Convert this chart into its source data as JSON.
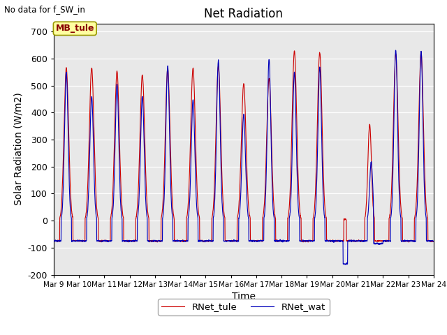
{
  "title": "Net Radiation",
  "xlabel": "Time",
  "ylabel": "Solar Radiation (W/m2)",
  "note": "No data for f_SW_in",
  "legend_labels": [
    "RNet_tule",
    "RNet_wat"
  ],
  "legend_colors": [
    "#cc0000",
    "#0000bb"
  ],
  "station_label": "MB_tule",
  "ylim": [
    -200,
    730
  ],
  "yticks": [
    -200,
    -100,
    0,
    100,
    200,
    300,
    400,
    500,
    600,
    700
  ],
  "xtick_labels": [
    "Mar 9",
    "Mar 10",
    "Mar 11",
    "Mar 12",
    "Mar 13",
    "Mar 14",
    "Mar 15",
    "Mar 16",
    "Mar 17",
    "Mar 18",
    "Mar 19",
    "Mar 20",
    "Mar 21",
    "Mar 22",
    "Mar 23",
    "Mar 24"
  ],
  "bg_color": "#e8e8e8",
  "line_color_tule": "#cc0000",
  "line_color_wat": "#0000bb",
  "linewidth": 0.8,
  "days": 15
}
